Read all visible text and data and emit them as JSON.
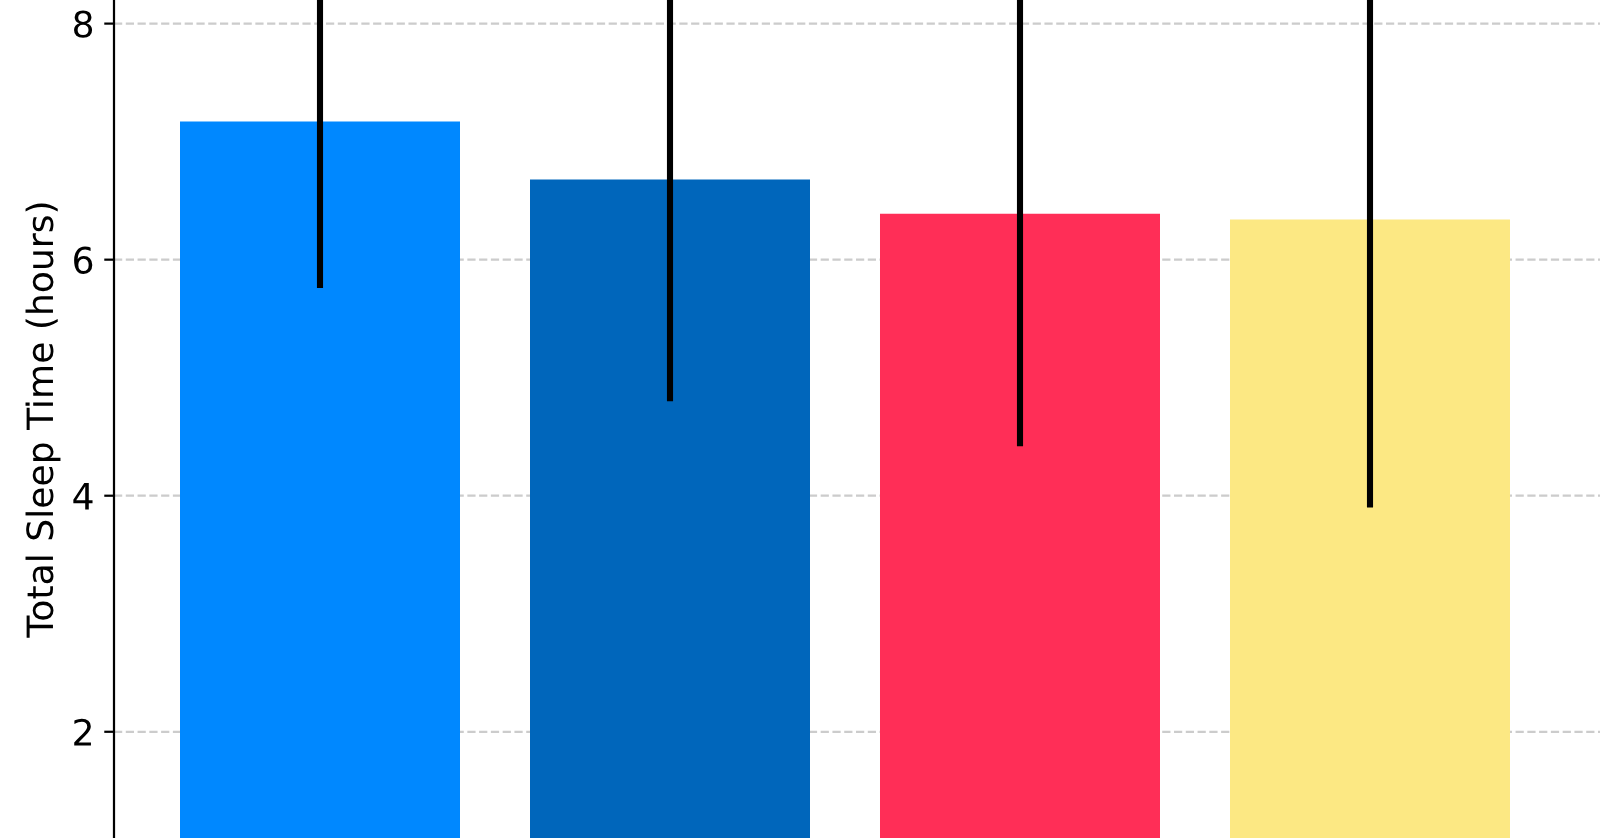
{
  "chart_data": {
    "type": "bar",
    "ylabel": "Total Sleep Time (hours)",
    "categories": [
      null,
      null,
      null,
      null
    ],
    "values": [
      7.17,
      6.68,
      6.39,
      6.34
    ],
    "colors": [
      "#0088ff",
      "#0066bb",
      "#ff2e57",
      "#fce883"
    ],
    "errors": [
      [
        5.76,
        8.2
      ],
      [
        4.8,
        8.2
      ],
      [
        4.42,
        8.2
      ],
      [
        3.9,
        8.2
      ]
    ],
    "ylim": [
      1.1,
      8.2
    ],
    "yticks": [
      2,
      4,
      6,
      8
    ],
    "grid": true
  }
}
